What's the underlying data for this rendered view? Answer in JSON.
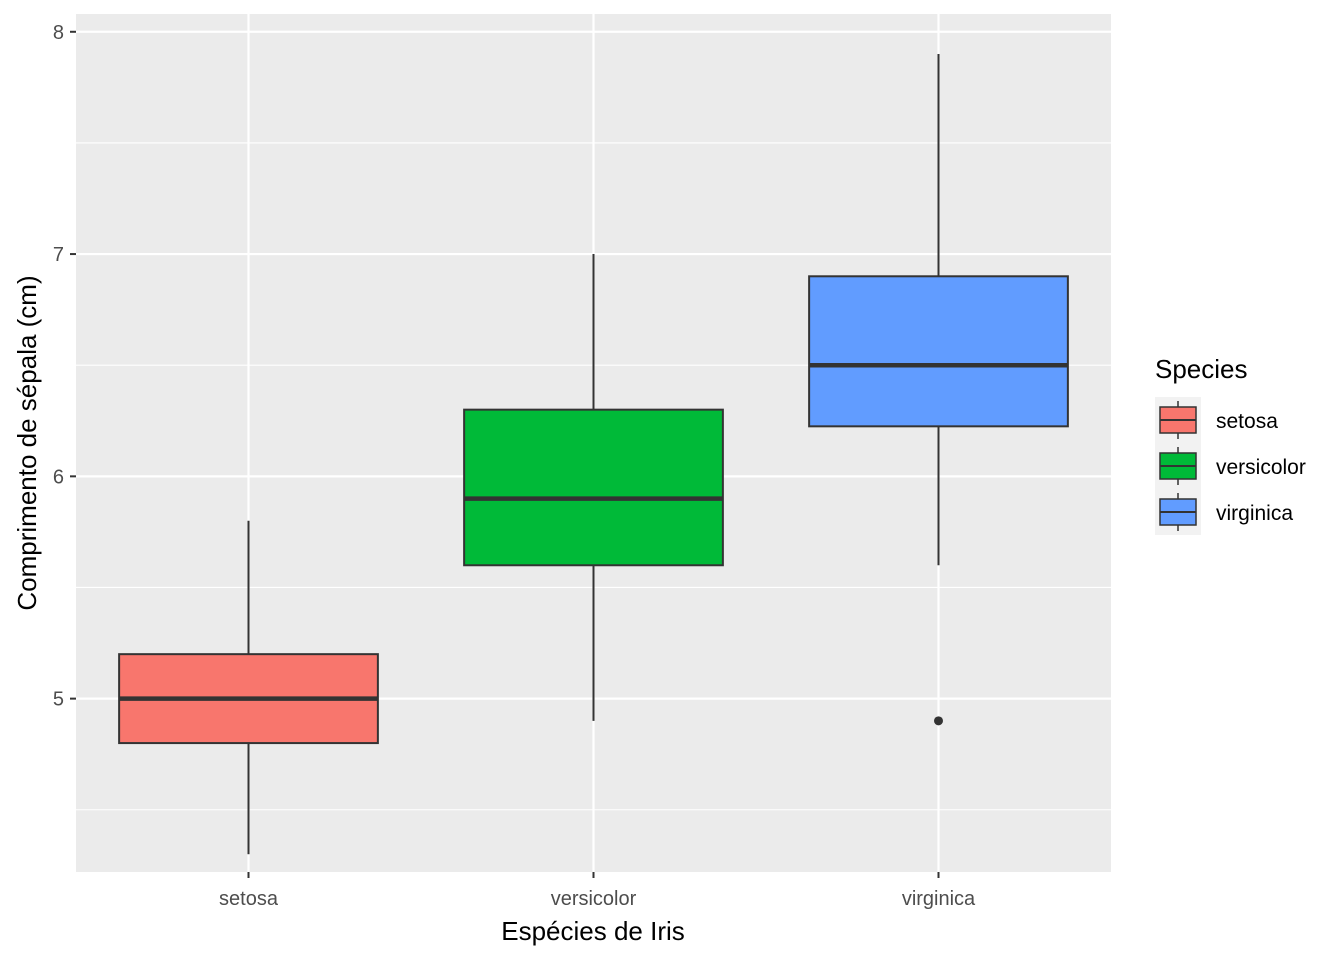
{
  "chart_data": {
    "type": "boxplot",
    "xlabel": "Espécies de Iris",
    "ylabel": "Comprimento de sépala (cm)",
    "categories": [
      "setosa",
      "versicolor",
      "virginica"
    ],
    "ylim": [
      4.22,
      8.08
    ],
    "yticks": [
      5,
      6,
      7,
      8
    ],
    "grid": true,
    "legend": {
      "title": "Species",
      "position": "right"
    },
    "boxes": [
      {
        "name": "setosa",
        "min": 4.3,
        "q1": 4.8,
        "median": 5.0,
        "q3": 5.2,
        "max": 5.8,
        "outliers": [],
        "color": "#F8766D"
      },
      {
        "name": "versicolor",
        "min": 4.9,
        "q1": 5.6,
        "median": 5.9,
        "q3": 6.3,
        "max": 7.0,
        "outliers": [],
        "color": "#00BA38"
      },
      {
        "name": "virginica",
        "min": 5.6,
        "q1": 6.225,
        "median": 6.5,
        "q3": 6.9,
        "max": 7.9,
        "outliers": [
          4.9
        ],
        "color": "#619CFF"
      }
    ],
    "colors": {
      "panel": "#EBEBEB",
      "grid": "#FFFFFF",
      "box_outline": "#333333"
    }
  }
}
